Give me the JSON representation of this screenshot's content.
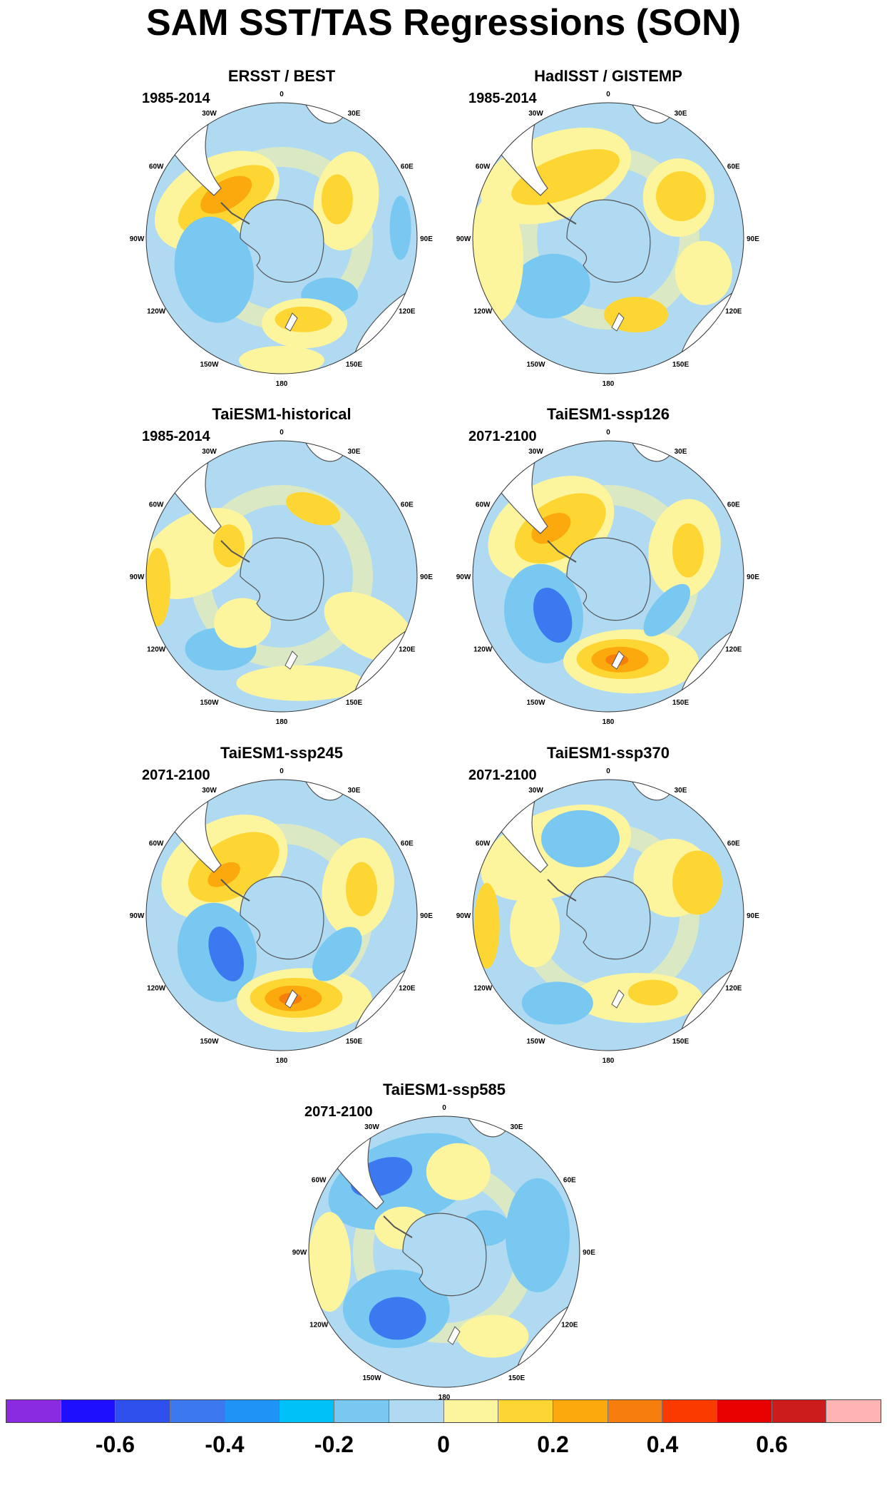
{
  "title": "SAM SST/TAS Regressions (SON)",
  "panels": [
    {
      "title": "ERSST / BEST",
      "period": "1985-2014"
    },
    {
      "title": "HadISST / GISTEMP",
      "period": "1985-2014"
    },
    {
      "title": "TaiESM1-historical",
      "period": "1985-2014"
    },
    {
      "title": "TaiESM1-ssp126",
      "period": "2071-2100"
    },
    {
      "title": "TaiESM1-ssp245",
      "period": "2071-2100"
    },
    {
      "title": "TaiESM1-ssp370",
      "period": "2071-2100"
    },
    {
      "title": "TaiESM1-ssp585",
      "period": "2071-2100"
    }
  ],
  "longitude_labels": [
    "0",
    "30E",
    "60E",
    "90E",
    "120E",
    "150E",
    "180",
    "150W",
    "120W",
    "90W",
    "60W",
    "30W"
  ],
  "colorbar": {
    "colors": [
      "#8a2be2",
      "#1e10ff",
      "#3050ee",
      "#3c78f0",
      "#2094f6",
      "#00c0f8",
      "#78c8f2",
      "#b0daf2",
      "#fdf59e",
      "#fdd634",
      "#fba90c",
      "#f77d0c",
      "#fb3a00",
      "#e80000",
      "#cc1c1c",
      "#ffb4b4"
    ],
    "labels": [
      "-0.6",
      "-0.4",
      "-0.2",
      "0",
      "0.2",
      "0.4",
      "0.6"
    ]
  },
  "map_colors": {
    "ocean_neutral_neg": "#b0daf2",
    "neutral_pos": "#fdf59e",
    "moderate_neg": "#78c8f2",
    "strong_neg": "#3c78f0",
    "moderate_pos": "#fdd634",
    "strong_pos": "#fba90c",
    "very_strong_pos": "#f77d0c",
    "coast": "#555555",
    "land_white": "#ffffff"
  }
}
